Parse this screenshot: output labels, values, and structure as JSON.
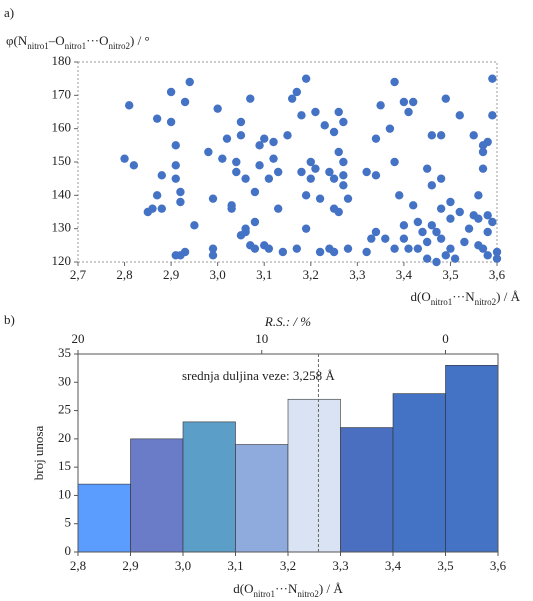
{
  "chart_data": [
    {
      "type": "scatter",
      "panel": "a)",
      "ylabel_parts": [
        "φ(N",
        "nitro1",
        "–O",
        "nitro1",
        "···O",
        "nitro2",
        ") / °"
      ],
      "xlabel_parts": [
        "d(O",
        "nitro1",
        "···N",
        "nitro2",
        ") / Å"
      ],
      "color": "#4472c4",
      "xlim": [
        2.7,
        3.6
      ],
      "xticks": [
        {
          "value": 2.7,
          "label": "2,7"
        },
        {
          "value": 2.8,
          "label": "2,8"
        },
        {
          "value": 2.9,
          "label": "2,9"
        },
        {
          "value": 3.0,
          "label": "3,0"
        },
        {
          "value": 3.1,
          "label": "3,1"
        },
        {
          "value": 3.2,
          "label": "3,2"
        },
        {
          "value": 3.3,
          "label": "3,3"
        },
        {
          "value": 3.4,
          "label": "3,4"
        },
        {
          "value": 3.5,
          "label": "3,5"
        },
        {
          "value": 3.6,
          "label": "3,6"
        }
      ],
      "ylim": [
        120,
        180
      ],
      "yticks": [
        120,
        130,
        140,
        150,
        160,
        170,
        180
      ],
      "x": [
        2.8,
        2.81,
        2.82,
        2.85,
        2.86,
        2.87,
        2.87,
        2.88,
        2.88,
        2.9,
        2.9,
        2.91,
        2.91,
        2.91,
        2.92,
        2.92,
        2.91,
        2.92,
        2.93,
        2.93,
        2.94,
        2.95,
        2.98,
        2.99,
        2.99,
        2.99,
        3.0,
        3.01,
        3.02,
        3.03,
        3.03,
        3.04,
        3.04,
        3.05,
        3.05,
        3.05,
        3.06,
        3.06,
        3.06,
        3.07,
        3.07,
        3.08,
        3.08,
        3.08,
        3.09,
        3.09,
        3.1,
        3.1,
        3.11,
        3.11,
        3.12,
        3.12,
        3.13,
        3.14,
        3.13,
        3.15,
        3.16,
        3.17,
        3.17,
        3.18,
        3.19,
        3.18,
        3.19,
        3.19,
        3.2,
        3.2,
        3.21,
        3.21,
        3.22,
        3.22,
        3.23,
        3.24,
        3.24,
        3.25,
        3.25,
        3.25,
        3.25,
        3.26,
        3.26,
        3.26,
        3.27,
        3.27,
        3.27,
        3.27,
        3.28,
        3.28,
        3.32,
        3.32,
        3.33,
        3.34,
        3.34,
        3.34,
        3.35,
        3.36,
        3.37,
        3.38,
        3.38,
        3.38,
        3.39,
        3.4,
        3.4,
        3.4,
        3.41,
        3.41,
        3.42,
        3.42,
        3.43,
        3.43,
        3.44,
        3.45,
        3.45,
        3.45,
        3.46,
        3.46,
        3.46,
        3.47,
        3.47,
        3.48,
        3.48,
        3.48,
        3.48,
        3.49,
        3.49,
        3.5,
        3.5,
        3.5,
        3.51,
        3.52,
        3.52,
        3.53,
        3.54,
        3.55,
        3.55,
        3.56,
        3.56,
        3.56,
        3.57,
        3.57,
        3.57,
        3.57,
        3.58,
        3.58,
        3.58,
        3.58,
        3.59,
        3.59,
        3.59,
        3.6,
        3.6
      ],
      "y": [
        151,
        167,
        149,
        135,
        136,
        140,
        163,
        136,
        146,
        171,
        162,
        149,
        155,
        145,
        141,
        138,
        122,
        122,
        123,
        168,
        174,
        131,
        153,
        139,
        124,
        122,
        166,
        151,
        157,
        137,
        136,
        147,
        150,
        158,
        162,
        128,
        145,
        130,
        129,
        169,
        125,
        141,
        124,
        132,
        155,
        149,
        157,
        125,
        124,
        145,
        156,
        151,
        136,
        123,
        147,
        158,
        169,
        171,
        124,
        164,
        175,
        147,
        140,
        130,
        150,
        145,
        148,
        165,
        123,
        139,
        161,
        147,
        124,
        159,
        136,
        145,
        123,
        153,
        165,
        135,
        150,
        146,
        143,
        162,
        139,
        124,
        147,
        123,
        127,
        129,
        146,
        157,
        167,
        127,
        160,
        150,
        174,
        124,
        140,
        131,
        127,
        168,
        165,
        124,
        137,
        168,
        132,
        124,
        129,
        126,
        148,
        121,
        143,
        158,
        131,
        120,
        129,
        158,
        136,
        145,
        127,
        169,
        122,
        138,
        133,
        124,
        121,
        164,
        135,
        126,
        130,
        158,
        134,
        133,
        140,
        125,
        124,
        148,
        155,
        153,
        156,
        134,
        129,
        122,
        175,
        132,
        164,
        123,
        121
      ]
    },
    {
      "type": "histogram",
      "panel": "b)",
      "ylabel": "broj unosa",
      "xlabel_parts": [
        "d(O",
        "nitro1",
        "···N",
        "nitro2",
        ") / Å"
      ],
      "x2label": "R.S.: / %",
      "bins": [
        2.8,
        2.9,
        3.0,
        3.1,
        3.2,
        3.3,
        3.4,
        3.5,
        3.6
      ],
      "counts": [
        12,
        20,
        23,
        19,
        27,
        22,
        28,
        33
      ],
      "colors": [
        "#5b9cff",
        "#6a7bc8",
        "#5b9fc8",
        "#8faadc",
        "#dae3f3",
        "#4a6fc0",
        "#4472c4",
        "#4472c4"
      ],
      "xlim": [
        2.8,
        3.6
      ],
      "xticks": [
        {
          "value": 2.8,
          "label": "2,8"
        },
        {
          "value": 2.9,
          "label": "2,9"
        },
        {
          "value": 3.0,
          "label": "3,0"
        },
        {
          "value": 3.1,
          "label": "3,1"
        },
        {
          "value": 3.2,
          "label": "3,2"
        },
        {
          "value": 3.3,
          "label": "3,3"
        },
        {
          "value": 3.4,
          "label": "3,4"
        },
        {
          "value": 3.5,
          "label": "3,5"
        },
        {
          "value": 3.6,
          "label": "3,6"
        }
      ],
      "x2lim": [
        20,
        -2.857
      ],
      "x2ticks": [
        20,
        10,
        0
      ],
      "ylim": [
        0,
        35
      ],
      "yticks": [
        0,
        5,
        10,
        15,
        20,
        25,
        30,
        35
      ],
      "mean": 3.258,
      "annotation": "srednja duljina veze: 3,258 Å"
    }
  ]
}
